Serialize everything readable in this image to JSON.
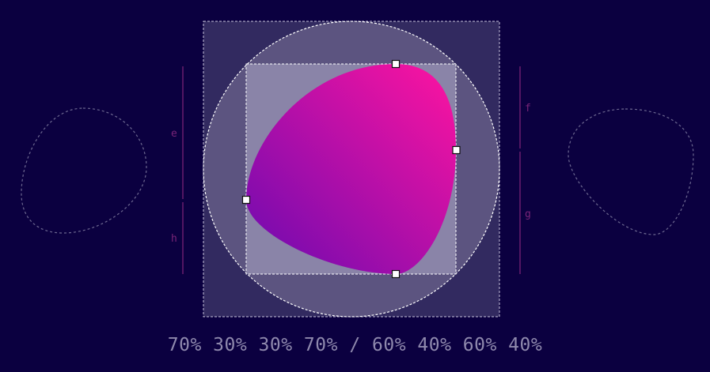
{
  "border_radius": "70% 30% 30% 70% / 60% 40% 60% 40%",
  "radius_labels": {
    "e": "e",
    "f": "f",
    "g": "g",
    "h": "h"
  },
  "colors": {
    "background": "#0b0040",
    "gradient_start": "#6a0ab0",
    "gradient_end": "#ff14a0",
    "outer_square": "#322a60",
    "circle": "#5c5480",
    "inner_square": "#8a84a8",
    "guide_line": "#6a1d6e",
    "label": "#7a2478",
    "caption": "#8f89ad"
  },
  "handles": [
    "top-handle",
    "right-handle",
    "bottom-handle",
    "left-handle"
  ]
}
